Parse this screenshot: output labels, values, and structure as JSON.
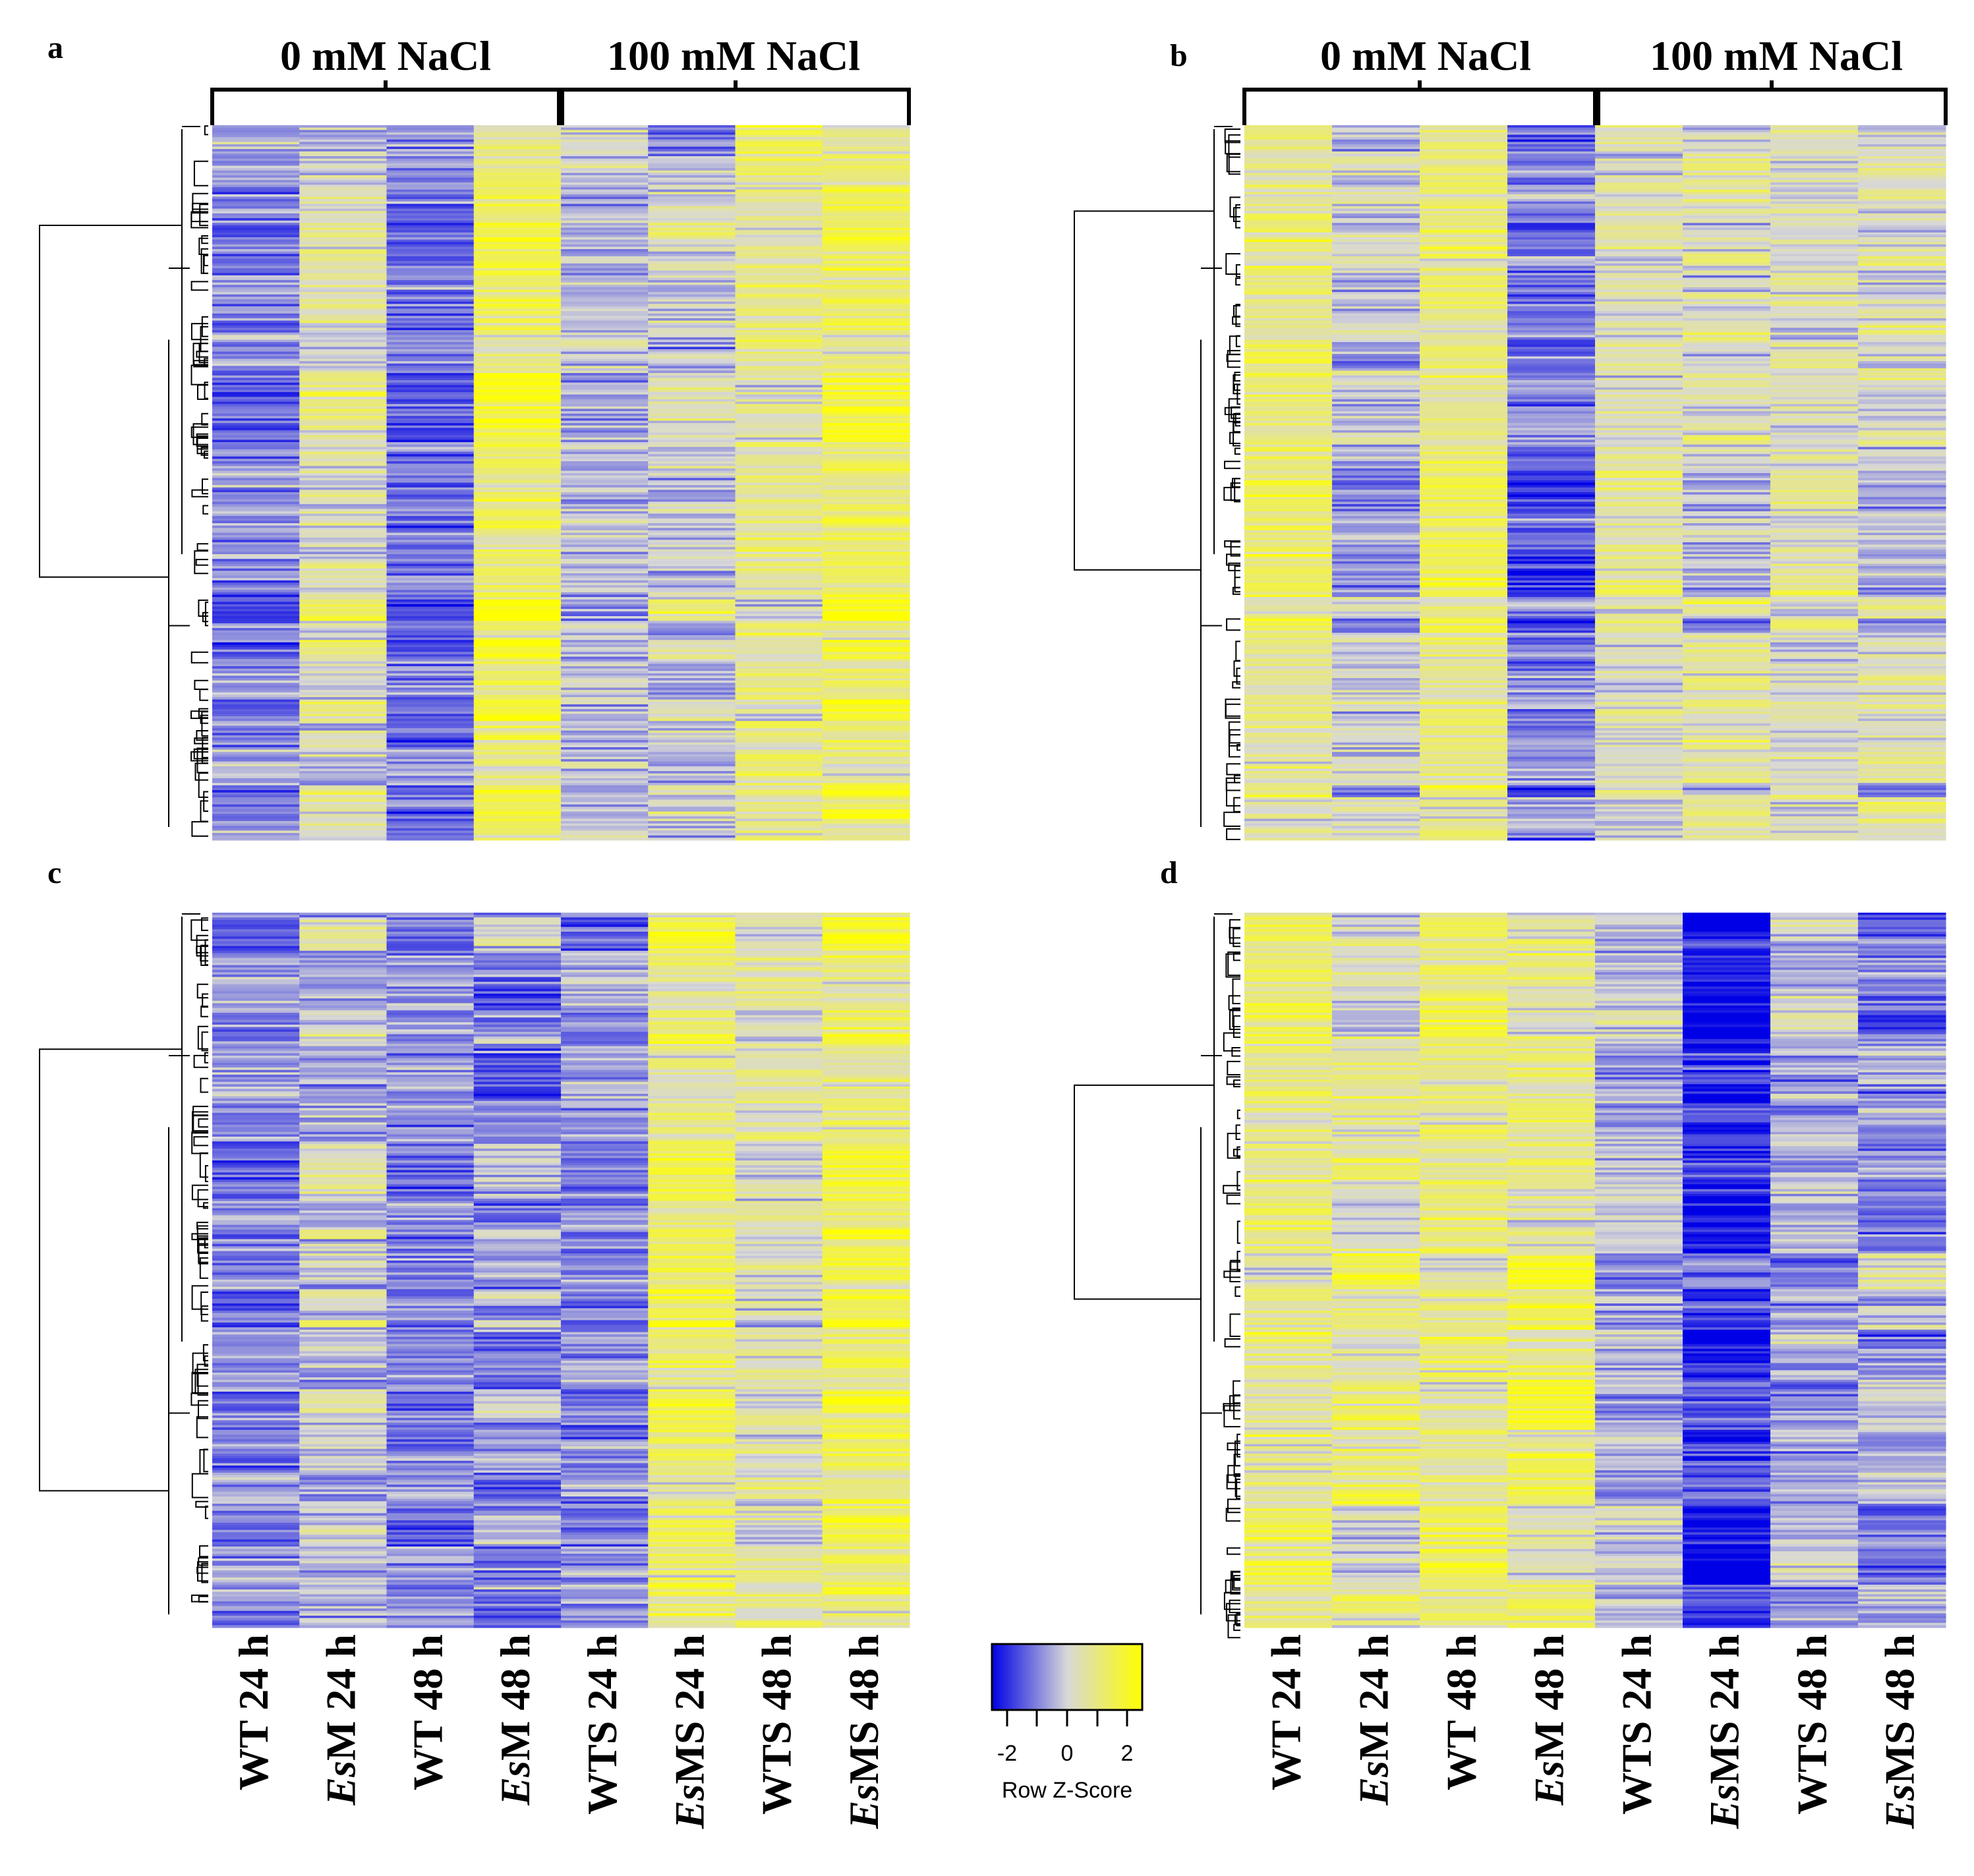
{
  "chart_data": [
    {
      "type": "heatmap",
      "panel_label": "a",
      "group_labels": [
        "0 mM NaCl",
        "100 mM NaCl"
      ],
      "columns": [
        {
          "prefix": "WT",
          "suffix": " 24 h",
          "italic_prefix": false
        },
        {
          "prefix": "Es",
          "suffix": "M 24 h",
          "italic_prefix": true
        },
        {
          "prefix": "WT",
          "suffix": " 48 h",
          "italic_prefix": false
        },
        {
          "prefix": "Es",
          "suffix": "M 48 h",
          "italic_prefix": true
        },
        {
          "prefix": "WTS",
          "suffix": " 24 h",
          "italic_prefix": false
        },
        {
          "prefix": "Es",
          "suffix": "MS 24 h",
          "italic_prefix": true
        },
        {
          "prefix": "WTS",
          "suffix": " 48 h",
          "italic_prefix": false
        },
        {
          "prefix": "Es",
          "suffix": "MS 48 h",
          "italic_prefix": true
        }
      ],
      "row_count": 300,
      "column_mean_zscore": [
        -0.8,
        0.3,
        -1.0,
        1.1,
        -0.3,
        0.0,
        0.6,
        1.1
      ],
      "value_range": [
        -2,
        2
      ]
    },
    {
      "type": "heatmap",
      "panel_label": "b",
      "group_labels": [
        "0 mM NaCl",
        "100 mM NaCl"
      ],
      "row_count": 300,
      "column_mean_zscore": [
        0.8,
        -0.2,
        0.9,
        -0.9,
        0.3,
        0.2,
        0.3,
        0.1
      ],
      "value_range": [
        -2,
        2
      ]
    },
    {
      "type": "heatmap",
      "panel_label": "c",
      "row_count": 300,
      "column_mean_zscore": [
        -0.8,
        -0.1,
        -0.8,
        -0.6,
        -0.7,
        1.0,
        0.3,
        1.1
      ],
      "value_range": [
        -2,
        2
      ]
    },
    {
      "type": "heatmap",
      "panel_label": "d",
      "row_count": 300,
      "column_mean_zscore": [
        0.8,
        0.5,
        0.8,
        0.8,
        -0.3,
        -1.6,
        -0.4,
        -0.6
      ],
      "value_range": [
        -2,
        2
      ]
    }
  ],
  "legend": {
    "title": "Row Z-Score",
    "ticks": [
      "-2",
      "0",
      "2"
    ],
    "colors": {
      "low": "#0000e6",
      "mid": "#d8d8d8",
      "high": "#ffff00"
    }
  }
}
